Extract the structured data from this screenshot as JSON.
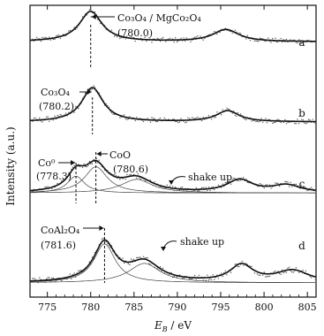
{
  "chart_data": {
    "type": "line",
    "xlabel": "E_B / eV",
    "xlabel_main": "E",
    "xlabel_sub": "B",
    "xlabel_unit": " / eV",
    "ylabel": "Intensity (a.u.)",
    "xlim": [
      773,
      806
    ],
    "x_ticks": [
      775,
      780,
      785,
      790,
      795,
      800,
      805
    ],
    "x_tick_labels": [
      "775",
      "780",
      "785",
      "790",
      "795",
      "800",
      "805"
    ],
    "panels": [
      {
        "label": "a",
        "baseline": 0.62,
        "slope": 0.0,
        "peaks": [
          [
            780.0,
            0.55,
            1.6
          ],
          [
            795.6,
            0.22,
            1.8
          ]
        ],
        "components": [],
        "annotations": [
          {
            "text": "Co₃O₄ / MgCo₂O₄",
            "x": 780.0
          },
          {
            "text": "(780.0)",
            "x": 780.0
          }
        ]
      },
      {
        "label": "b",
        "baseline": 0.45,
        "slope": 0.0,
        "peaks": [
          [
            780.2,
            0.62,
            1.5
          ],
          [
            795.8,
            0.2,
            1.6
          ]
        ],
        "components": [],
        "annotations": [
          {
            "text": "Co₃O₄",
            "x": 780.2
          },
          {
            "text": "(780.2)",
            "x": 780.2
          }
        ]
      },
      {
        "label": "c",
        "baseline": 0.4,
        "slope": 0.0,
        "peaks": [
          [
            778.3,
            0.32,
            1.2
          ],
          [
            780.6,
            0.5,
            1.6
          ],
          [
            785.3,
            0.26,
            2.2
          ],
          [
            797.2,
            0.24,
            1.8
          ],
          [
            802.6,
            0.14,
            2.0
          ]
        ],
        "components": [
          [
            778.3,
            0.32,
            1.2
          ],
          [
            780.6,
            0.5,
            1.6
          ],
          [
            785.3,
            0.26,
            2.2
          ]
        ],
        "annotations": [
          {
            "text": "Co⁰",
            "x": 778.3
          },
          {
            "text": "(778.3)",
            "x": 778.3
          },
          {
            "text": "CoO",
            "x": 780.6
          },
          {
            "text": "(780.6)",
            "x": 780.6
          },
          {
            "text": "shake up",
            "x": 785.3
          }
        ]
      },
      {
        "label": "d",
        "baseline": 0.22,
        "slope": 0.0,
        "peaks": [
          [
            781.6,
            0.6,
            1.5
          ],
          [
            786.2,
            0.3,
            2.2
          ],
          [
            797.4,
            0.26,
            1.6
          ],
          [
            803.3,
            0.18,
            2.3
          ]
        ],
        "components": [
          [
            781.6,
            0.6,
            1.5
          ],
          [
            786.2,
            0.3,
            2.2
          ]
        ],
        "annotations": [
          {
            "text": "CoAl₂O₄",
            "x": 781.6
          },
          {
            "text": "(781.6)",
            "x": 781.6
          },
          {
            "text": "shake up",
            "x": 786.2
          }
        ]
      }
    ],
    "grid": false,
    "legend": "none"
  }
}
